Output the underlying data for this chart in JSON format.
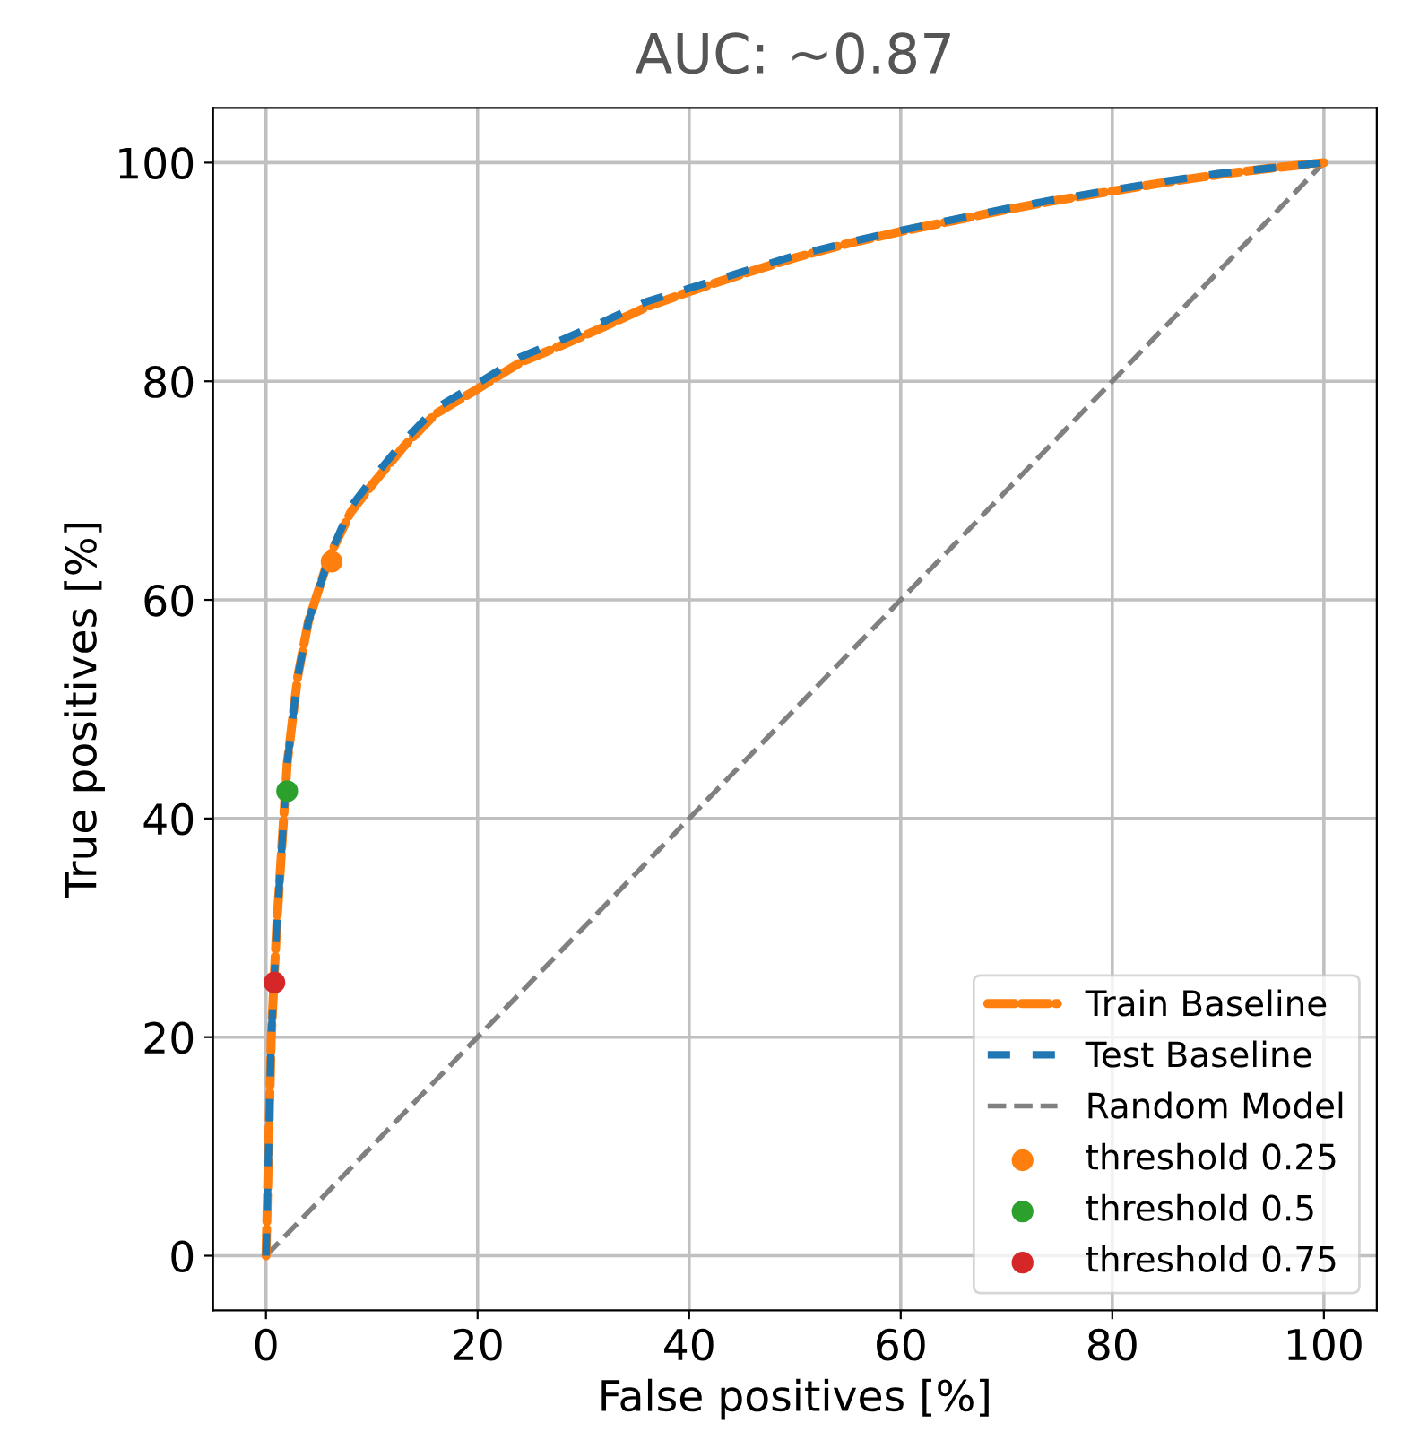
{
  "chart_data": {
    "type": "line",
    "title": "AUC: ~0.87",
    "xlabel": "False positives [%]",
    "ylabel": "True positives [%]",
    "xlim": [
      -5,
      105
    ],
    "ylim": [
      -5,
      105
    ],
    "xticks": [
      0,
      20,
      40,
      60,
      80,
      100
    ],
    "yticks": [
      0,
      20,
      40,
      60,
      80,
      100
    ],
    "grid": true,
    "legend": "bottom right",
    "series": [
      {
        "name": "Train Baseline",
        "color": "#ff7f0e",
        "line_style": "dashed",
        "x": [
          0,
          0.5,
          1,
          2,
          3,
          4,
          6,
          8,
          10,
          13,
          16,
          20,
          24,
          28,
          32,
          36,
          40,
          45,
          50,
          55,
          60,
          65,
          70,
          75,
          80,
          85,
          90,
          95,
          100
        ],
        "values": [
          0,
          20,
          30,
          45,
          53,
          58,
          64,
          68,
          70.5,
          74,
          77,
          79.3,
          81.7,
          83.3,
          85,
          86.8,
          88.2,
          89.8,
          91.3,
          92.6,
          93.7,
          94.7,
          95.7,
          96.6,
          97.4,
          98.2,
          98.9,
          99.5,
          100
        ]
      },
      {
        "name": "Test Baseline",
        "color": "#1f77b4",
        "line_style": "dashed",
        "x": [
          0,
          0.5,
          1,
          2,
          3,
          4,
          6,
          8,
          10,
          13,
          16,
          20,
          24,
          28,
          32,
          36,
          40,
          45,
          50,
          55,
          60,
          65,
          70,
          75,
          80,
          85,
          90,
          95,
          100
        ],
        "values": [
          0,
          20,
          30,
          45,
          53,
          58,
          64,
          68.5,
          71,
          74.5,
          77.5,
          79.8,
          82.2,
          83.8,
          85.5,
          87.3,
          88.5,
          90,
          91.5,
          92.7,
          93.8,
          94.8,
          95.8,
          96.7,
          97.5,
          98.3,
          99,
          99.5,
          100
        ]
      },
      {
        "name": "Random Model",
        "color": "#808080",
        "line_style": "dashed",
        "x": [
          0,
          100
        ],
        "values": [
          0,
          100
        ]
      },
      {
        "name": "threshold 0.25",
        "type": "scatter",
        "color": "#ff7f0e",
        "marker": "circle",
        "x": [
          6.2
        ],
        "values": [
          63.5
        ]
      },
      {
        "name": "threshold 0.5",
        "type": "scatter",
        "color": "#2ca02c",
        "marker": "circle",
        "x": [
          2
        ],
        "values": [
          42.5
        ]
      },
      {
        "name": "threshold 0.75",
        "type": "scatter",
        "color": "#d62728",
        "marker": "circle",
        "x": [
          0.8
        ],
        "values": [
          25
        ]
      }
    ]
  }
}
